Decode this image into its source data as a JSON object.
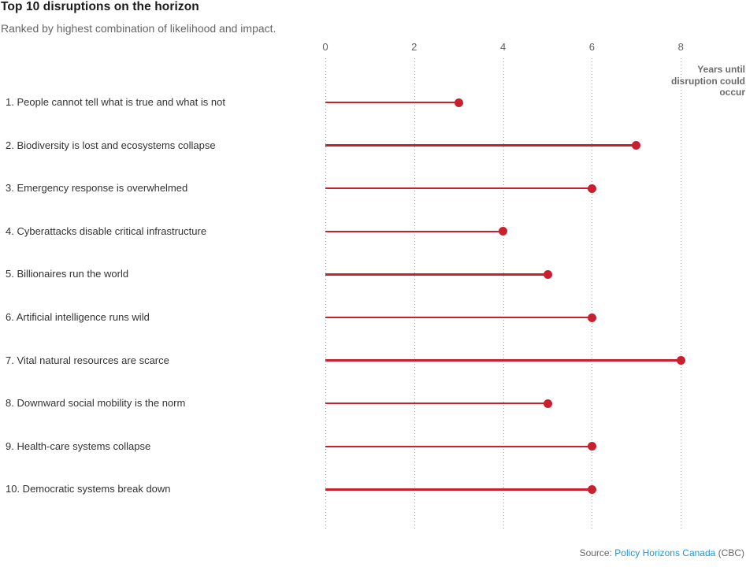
{
  "chart_data": {
    "type": "bar",
    "variant": "horizontal-lollipop",
    "title": "Top 10 disruptions on the horizon",
    "subtitle": "Ranked by highest combination of likelihood and impact.",
    "categories": [
      "1. People cannot tell what is true and what is not",
      "2. Biodiversity is lost and ecosystems collapse",
      "3. Emergency response is overwhelmed",
      "4. Cyberattacks disable critical infrastructure",
      "5. Billionaires run the world",
      "6. Artificial intelligence runs wild",
      "7. Vital natural resources are scarce",
      "8. Downward social mobility is the norm",
      "9. Health-care systems collapse",
      "10. Democratic systems break down"
    ],
    "values": [
      3,
      7,
      6,
      4,
      5,
      6,
      8,
      5,
      6,
      6
    ],
    "xlabel": "Years until\ndisruption could\noccur",
    "ylabel": "",
    "xlim": [
      0,
      8
    ],
    "xticks": [
      0,
      2,
      4,
      6,
      8
    ],
    "grid": "vertical-dotted",
    "legend": "none"
  },
  "source": {
    "prefix": "Source: ",
    "link_text": "Policy Horizons Canada",
    "suffix": " (CBC)"
  },
  "colors": {
    "accent_red": "#c8202e",
    "link_blue": "#1e97d2",
    "grid_gray": "#a3a3a3",
    "text_dark": "#1a1a1a",
    "text_gray": "#666666"
  }
}
